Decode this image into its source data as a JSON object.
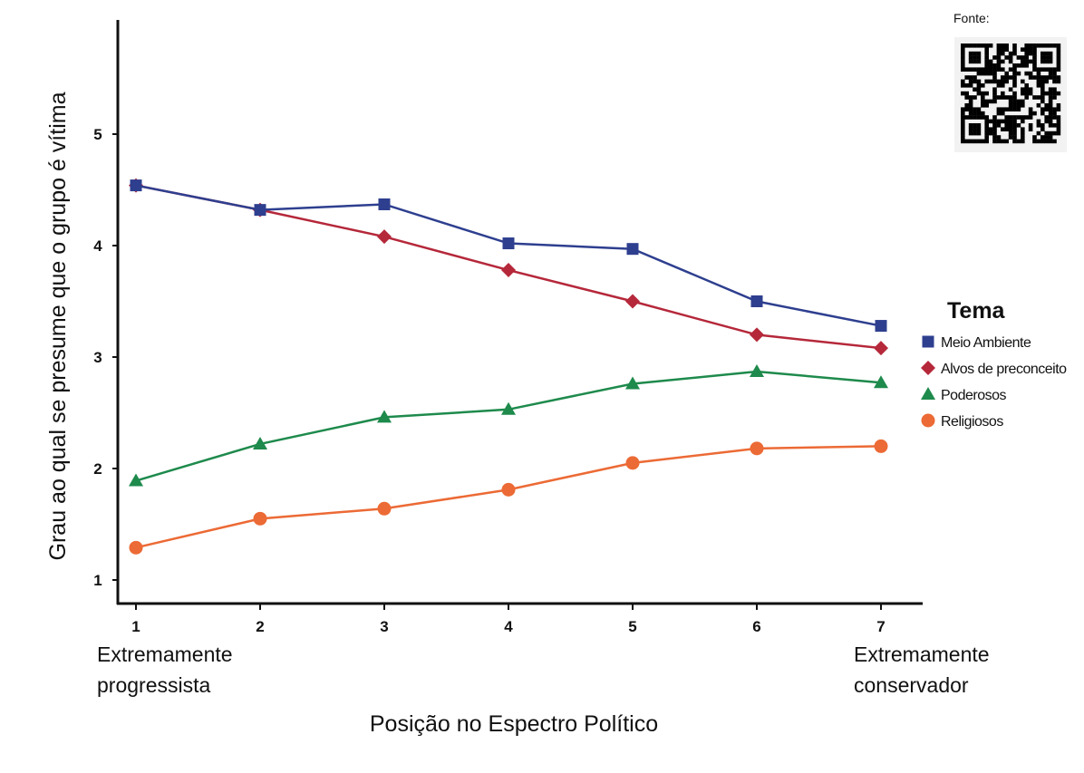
{
  "chart_data": {
    "type": "line",
    "title": "",
    "xlabel": "Posição no Espectro Político",
    "ylabel": "Grau ao qual se presume que o grupo é vítima",
    "x": [
      1,
      2,
      3,
      4,
      5,
      6,
      7
    ],
    "x_tick_labels": [
      "1",
      "2",
      "3",
      "4",
      "5",
      "6",
      "7"
    ],
    "x_end_labels": {
      "left": [
        "Extremamente",
        "progressista"
      ],
      "right": [
        "Extremamente",
        "conservador"
      ]
    },
    "y_ticks": [
      1,
      2,
      3,
      4,
      5
    ],
    "y_tick_labels": [
      "1",
      "2",
      "3",
      "4",
      "5"
    ],
    "ylim": [
      0.8,
      5.9
    ],
    "xlim": [
      0.9,
      7.3
    ],
    "grid": false,
    "legend": {
      "title": "Tema",
      "placement": "right"
    },
    "series": [
      {
        "name": "Meio Ambiente",
        "marker": "square",
        "color": "#2e3f8f",
        "values": [
          4.54,
          4.32,
          4.37,
          4.02,
          3.97,
          3.5,
          3.28
        ]
      },
      {
        "name": "Alvos de preconceito",
        "marker": "diamond",
        "color": "#b5283a",
        "values": [
          4.54,
          4.32,
          4.08,
          3.78,
          3.5,
          3.2,
          3.08
        ]
      },
      {
        "name": "Poderosos",
        "marker": "triangle",
        "color": "#1e8a4c",
        "values": [
          1.89,
          2.22,
          2.46,
          2.53,
          2.76,
          2.87,
          2.77
        ]
      },
      {
        "name": "Religiosos",
        "marker": "circle",
        "color": "#ec6a35",
        "values": [
          1.29,
          1.55,
          1.64,
          1.81,
          2.05,
          2.18,
          2.2
        ]
      }
    ]
  },
  "source": {
    "label": "Fonte:"
  }
}
